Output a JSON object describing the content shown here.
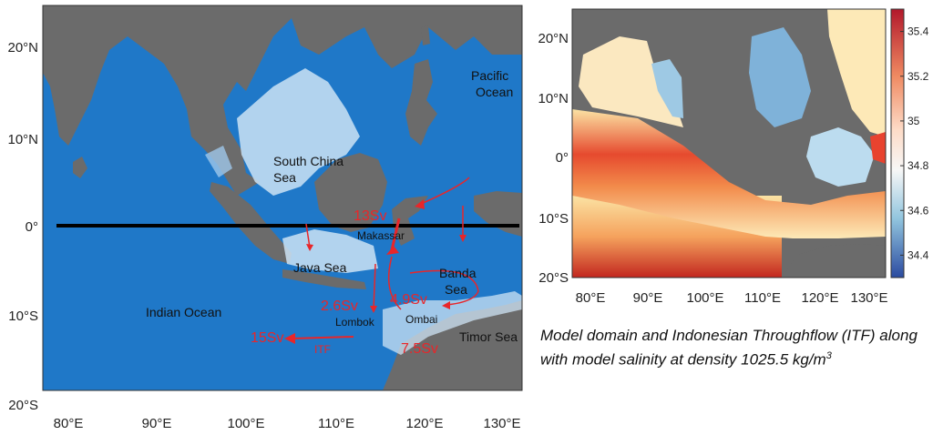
{
  "left_map": {
    "y_ticks": [
      "20°N",
      "10°N",
      "0°",
      "10°S",
      "20°S"
    ],
    "x_ticks": [
      "80°E",
      "90°E",
      "100°E",
      "110°E",
      "120°E",
      "130°E"
    ],
    "regions": {
      "south_china_sea_1": "South China",
      "south_china_sea_2": "Sea",
      "pacific_1": "Pacific",
      "pacific_2": "Ocean",
      "java_sea": "Java Sea",
      "banda_1": "Banda",
      "banda_2": "Sea",
      "indian_ocean": "Indian Ocean",
      "timor_sea": "Timor Sea"
    },
    "straits": {
      "makassar": "Makassar",
      "lombok": "Lombok",
      "ombai": "Ombai",
      "itf": "ITF"
    },
    "transports": {
      "makassar": "13Sv",
      "lombok": "2.6Sv",
      "ombai": "4.9Sv",
      "timor": "7.5Sv",
      "itf_total": "15Sv"
    }
  },
  "right_map": {
    "y_ticks": [
      "20°N",
      "10°N",
      "0°",
      "10°S",
      "20°S"
    ],
    "x_ticks": [
      "80°E",
      "90°E",
      "100°E",
      "110°E",
      "120°E",
      "130°E"
    ],
    "colorbar": {
      "ticks": [
        "35.4",
        "35.2",
        "35",
        "34.8",
        "34.6",
        "34.4"
      ],
      "min": 34.3,
      "max": 35.5
    }
  },
  "caption": {
    "text": "Model domain and Indonesian Throughflow (ITF) along with model salinity at density 1025.5 kg/m",
    "sup": "3"
  },
  "colors": {
    "land": "#6b6b6b",
    "deep_ocean": "#1f78c8",
    "shelf": "#cde3f4",
    "flow": "#e8262a"
  }
}
